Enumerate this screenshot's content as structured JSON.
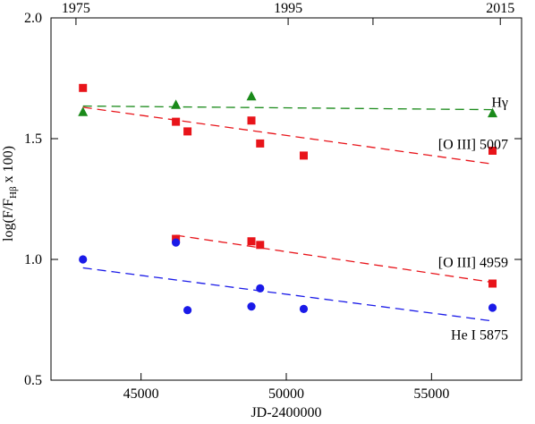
{
  "chart_data": {
    "type": "scatter",
    "xlabel": "JD-2400000",
    "ylabel": "log(F/F",
    "ylabel_sub": "Hβ",
    "ylabel_tail": " x 100)",
    "xlim": [
      41900,
      58100
    ],
    "ylim": [
      0.5,
      2.0
    ],
    "x_ticks": [
      45000,
      50000,
      55000
    ],
    "x_tick_labels": [
      "45000",
      "50000",
      "55000"
    ],
    "y_ticks": [
      0.5,
      1.0,
      1.5,
      2.0
    ],
    "y_tick_labels": [
      "0.5",
      "1.0",
      "1.5",
      "2.0"
    ],
    "top_axis": {
      "ticks": [
        42760,
        50064,
        52985,
        57368
      ],
      "tick_labels": [
        "1975",
        "1995",
        "2015"
      ],
      "labeled_ticks": [
        42760,
        50064,
        57368
      ]
    },
    "series": [
      {
        "name": "Hγ",
        "color": "#1a8a1a",
        "marker": "triangle",
        "x": [
          43000,
          46200,
          48800,
          57100
        ],
        "y": [
          1.61,
          1.64,
          1.675,
          1.605
        ],
        "fit": {
          "x": [
            43000,
            57100
          ],
          "y": [
            1.635,
            1.62
          ]
        }
      },
      {
        "name": "[O III] 5007",
        "color": "#e8141a",
        "marker": "square",
        "x": [
          43000,
          46200,
          46600,
          48800,
          49100,
          50600,
          57100
        ],
        "y": [
          1.71,
          1.57,
          1.53,
          1.575,
          1.48,
          1.43,
          1.45
        ],
        "fit": {
          "x": [
            43000,
            57100
          ],
          "y": [
            1.63,
            1.395
          ]
        }
      },
      {
        "name": "[O III] 4959",
        "color": "#e8141a",
        "marker": "square",
        "x": [
          46200,
          48800,
          49100,
          57100
        ],
        "y": [
          1.085,
          1.075,
          1.06,
          0.9
        ],
        "fit": {
          "x": [
            46200,
            57100
          ],
          "y": [
            1.1,
            0.905
          ]
        }
      },
      {
        "name": "He I 5875",
        "color": "#1a1ae8",
        "marker": "circle",
        "x": [
          43000,
          46200,
          46600,
          48800,
          49100,
          50600,
          57100
        ],
        "y": [
          1.0,
          1.07,
          0.79,
          0.805,
          0.88,
          0.795,
          0.8
        ],
        "fit": {
          "x": [
            43000,
            57100
          ],
          "y": [
            0.965,
            0.745
          ]
        }
      }
    ]
  }
}
